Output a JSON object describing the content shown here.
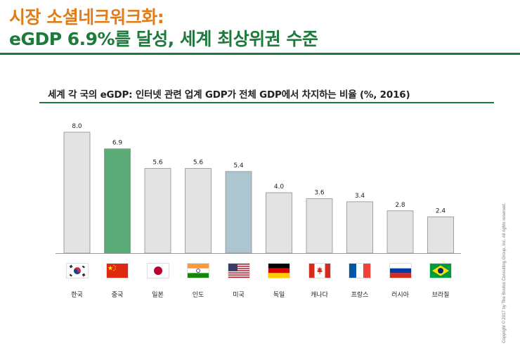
{
  "title": {
    "line1": "시장 소셜네크워크화:",
    "line2": "eGDP 6.9%를 달성, 세계 최상위권 수준"
  },
  "copyright": "Copyright © 2017 by The Boston Consulting Group, Inc. All rights reserved.",
  "chart_data": {
    "type": "bar",
    "title": "세계 각 국의 eGDP: 인터넷 관련 업계 GDP가 전체 GDP에서 차지하는 비율 (%, 2016)",
    "categories": [
      "한국",
      "중국",
      "일본",
      "인도",
      "미국",
      "독일",
      "캐나다",
      "프랑스",
      "러시아",
      "브라질"
    ],
    "values": [
      8.0,
      6.9,
      5.6,
      5.6,
      5.4,
      4.0,
      3.6,
      3.4,
      2.8,
      2.4
    ],
    "value_labels": [
      "8.0",
      "6.9",
      "5.6",
      "5.6",
      "5.4",
      "4.0",
      "3.6",
      "3.4",
      "2.8",
      "2.4"
    ],
    "flags": [
      "korea-flag",
      "china-flag",
      "japan-flag",
      "india-flag",
      "usa-flag",
      "germany-flag",
      "canada-flag",
      "france-flag",
      "russia-flag",
      "brazil-flag"
    ],
    "bar_colors": [
      "#e3e3e3",
      "#5bab78",
      "#e3e3e3",
      "#e3e3e3",
      "#adc5cf",
      "#e3e3e3",
      "#e3e3e3",
      "#e3e3e3",
      "#e3e3e3",
      "#e3e3e3"
    ],
    "ylim": [
      0,
      8.0
    ],
    "grid": false,
    "legend": "none"
  }
}
